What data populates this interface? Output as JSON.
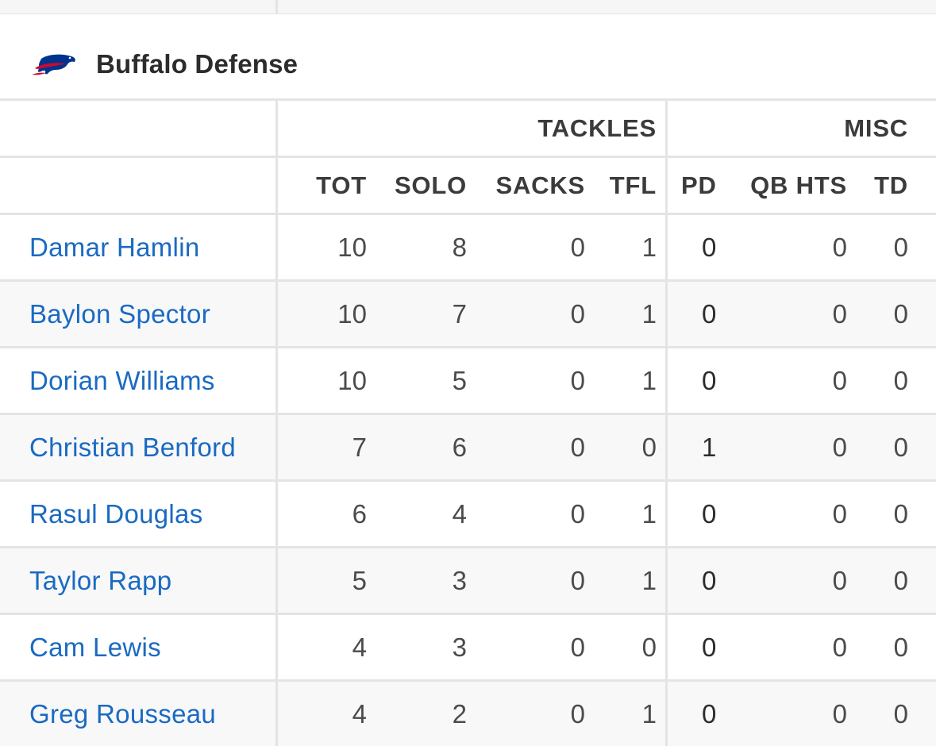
{
  "team": {
    "name": "Buffalo Defense",
    "logo_icon": "bills-buffalo-logo-icon",
    "colors": {
      "logo_blue": "#00338d",
      "logo_red": "#c60c30",
      "link": "#1a6ac2"
    }
  },
  "groups": {
    "tackles": "TACKLES",
    "misc": "MISC"
  },
  "columns": {
    "tot": "TOT",
    "solo": "SOLO",
    "sacks": "SACKS",
    "tfl": "TFL",
    "pd": "PD",
    "qb_hts": "QB HTS",
    "td": "TD"
  },
  "players": [
    {
      "name": "Damar Hamlin",
      "tot": "10",
      "solo": "8",
      "sacks": "0",
      "tfl": "1",
      "pd": "0",
      "qb_hts": "0",
      "td": "0"
    },
    {
      "name": "Baylon Spector",
      "tot": "10",
      "solo": "7",
      "sacks": "0",
      "tfl": "1",
      "pd": "0",
      "qb_hts": "0",
      "td": "0"
    },
    {
      "name": "Dorian Williams",
      "tot": "10",
      "solo": "5",
      "sacks": "0",
      "tfl": "1",
      "pd": "0",
      "qb_hts": "0",
      "td": "0"
    },
    {
      "name": "Christian Benford",
      "tot": "7",
      "solo": "6",
      "sacks": "0",
      "tfl": "0",
      "pd": "1",
      "qb_hts": "0",
      "td": "0"
    },
    {
      "name": "Rasul Douglas",
      "tot": "6",
      "solo": "4",
      "sacks": "0",
      "tfl": "1",
      "pd": "0",
      "qb_hts": "0",
      "td": "0"
    },
    {
      "name": "Taylor Rapp",
      "tot": "5",
      "solo": "3",
      "sacks": "0",
      "tfl": "1",
      "pd": "0",
      "qb_hts": "0",
      "td": "0"
    },
    {
      "name": "Cam Lewis",
      "tot": "4",
      "solo": "3",
      "sacks": "0",
      "tfl": "0",
      "pd": "0",
      "qb_hts": "0",
      "td": "0"
    },
    {
      "name": "Greg Rousseau",
      "tot": "4",
      "solo": "2",
      "sacks": "0",
      "tfl": "1",
      "pd": "0",
      "qb_hts": "0",
      "td": "0"
    }
  ]
}
